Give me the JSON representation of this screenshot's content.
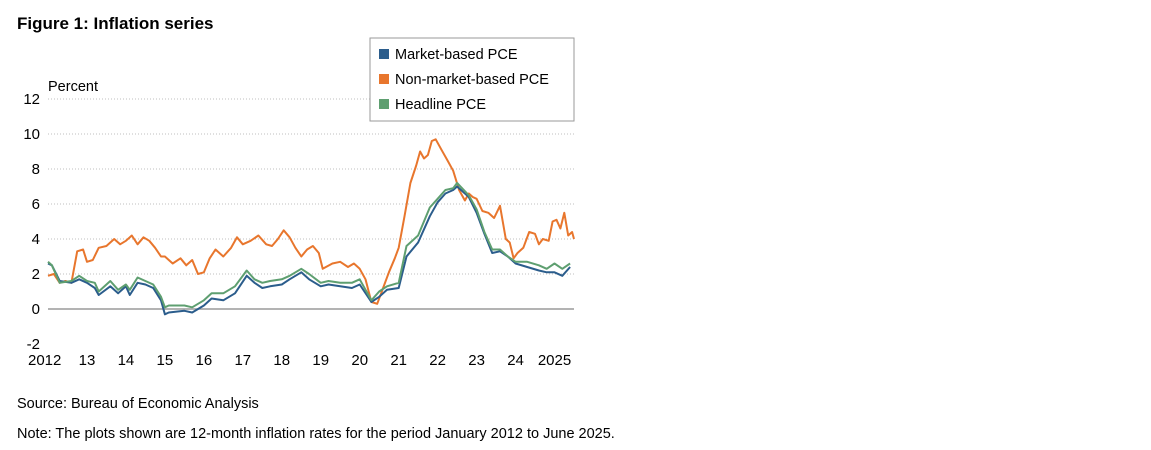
{
  "title": "Figure 1: Inflation series",
  "source": "Source: Bureau of Economic Analysis",
  "note": "Note: The plots shown are 12-month inflation rates for the period January 2012 to June 2025.",
  "colors": {
    "market": "#2b5d8c",
    "nonmarket": "#e8762d",
    "headline": "#5e9f70",
    "grid": "#bfbfbf",
    "zero": "#9a9a9a"
  },
  "chart_data": {
    "type": "line",
    "ylabel": "Percent",
    "ylim": [
      -2,
      12
    ],
    "yticks": [
      -2,
      0,
      2,
      4,
      6,
      8,
      10,
      12
    ],
    "xlim": [
      2012.0,
      2025.5
    ],
    "xticks": [
      {
        "v": 2012,
        "label": "2012"
      },
      {
        "v": 2013,
        "label": "13"
      },
      {
        "v": 2014,
        "label": "14"
      },
      {
        "v": 2015,
        "label": "15"
      },
      {
        "v": 2016,
        "label": "16"
      },
      {
        "v": 2017,
        "label": "17"
      },
      {
        "v": 2018,
        "label": "18"
      },
      {
        "v": 2019,
        "label": "19"
      },
      {
        "v": 2020,
        "label": "20"
      },
      {
        "v": 2021,
        "label": "21"
      },
      {
        "v": 2022,
        "label": "22"
      },
      {
        "v": 2023,
        "label": "23"
      },
      {
        "v": 2024,
        "label": "24"
      },
      {
        "v": 2025,
        "label": "2025"
      }
    ],
    "grid": "horizontal dotted",
    "legend": "top-right",
    "series": [
      {
        "name": "Market-based PCE",
        "color_key": "market",
        "points": [
          [
            2012.0,
            2.6
          ],
          [
            2012.1,
            2.5
          ],
          [
            2012.3,
            1.6
          ],
          [
            2012.6,
            1.5
          ],
          [
            2012.8,
            1.7
          ],
          [
            2013.0,
            1.5
          ],
          [
            2013.2,
            1.2
          ],
          [
            2013.3,
            0.8
          ],
          [
            2013.6,
            1.3
          ],
          [
            2013.8,
            0.9
          ],
          [
            2014.0,
            1.3
          ],
          [
            2014.1,
            0.8
          ],
          [
            2014.3,
            1.5
          ],
          [
            2014.5,
            1.4
          ],
          [
            2014.7,
            1.2
          ],
          [
            2014.9,
            0.5
          ],
          [
            2015.0,
            -0.3
          ],
          [
            2015.1,
            -0.2
          ],
          [
            2015.5,
            -0.1
          ],
          [
            2015.7,
            -0.2
          ],
          [
            2016.0,
            0.2
          ],
          [
            2016.2,
            0.6
          ],
          [
            2016.5,
            0.5
          ],
          [
            2016.8,
            0.9
          ],
          [
            2017.1,
            1.9
          ],
          [
            2017.3,
            1.5
          ],
          [
            2017.5,
            1.2
          ],
          [
            2017.7,
            1.3
          ],
          [
            2018.0,
            1.4
          ],
          [
            2018.2,
            1.7
          ],
          [
            2018.5,
            2.1
          ],
          [
            2018.7,
            1.7
          ],
          [
            2019.0,
            1.3
          ],
          [
            2019.2,
            1.4
          ],
          [
            2019.5,
            1.3
          ],
          [
            2019.8,
            1.2
          ],
          [
            2020.0,
            1.4
          ],
          [
            2020.3,
            0.4
          ],
          [
            2020.5,
            0.7
          ],
          [
            2020.7,
            1.1
          ],
          [
            2021.0,
            1.2
          ],
          [
            2021.2,
            3.0
          ],
          [
            2021.5,
            3.8
          ],
          [
            2021.8,
            5.3
          ],
          [
            2022.0,
            6.1
          ],
          [
            2022.2,
            6.6
          ],
          [
            2022.4,
            6.8
          ],
          [
            2022.5,
            7.0
          ],
          [
            2022.8,
            6.4
          ],
          [
            2023.0,
            5.5
          ],
          [
            2023.2,
            4.3
          ],
          [
            2023.4,
            3.2
          ],
          [
            2023.6,
            3.3
          ],
          [
            2023.8,
            3.0
          ],
          [
            2024.0,
            2.6
          ],
          [
            2024.3,
            2.4
          ],
          [
            2024.6,
            2.2
          ],
          [
            2024.8,
            2.1
          ],
          [
            2025.0,
            2.1
          ],
          [
            2025.2,
            1.9
          ],
          [
            2025.4,
            2.4
          ]
        ]
      },
      {
        "name": "Non-market-based PCE",
        "color_key": "nonmarket",
        "points": [
          [
            2012.0,
            1.9
          ],
          [
            2012.15,
            2.0
          ],
          [
            2012.3,
            1.5
          ],
          [
            2012.45,
            1.6
          ],
          [
            2012.6,
            1.5
          ],
          [
            2012.75,
            3.3
          ],
          [
            2012.9,
            3.4
          ],
          [
            2013.0,
            2.7
          ],
          [
            2013.15,
            2.8
          ],
          [
            2013.3,
            3.5
          ],
          [
            2013.5,
            3.6
          ],
          [
            2013.7,
            4.0
          ],
          [
            2013.85,
            3.7
          ],
          [
            2014.0,
            3.9
          ],
          [
            2014.15,
            4.2
          ],
          [
            2014.3,
            3.7
          ],
          [
            2014.45,
            4.1
          ],
          [
            2014.6,
            3.9
          ],
          [
            2014.75,
            3.5
          ],
          [
            2014.9,
            3.0
          ],
          [
            2015.0,
            3.0
          ],
          [
            2015.2,
            2.6
          ],
          [
            2015.4,
            2.9
          ],
          [
            2015.55,
            2.5
          ],
          [
            2015.7,
            2.8
          ],
          [
            2015.85,
            2.0
          ],
          [
            2016.0,
            2.1
          ],
          [
            2016.15,
            2.9
          ],
          [
            2016.3,
            3.4
          ],
          [
            2016.5,
            3.0
          ],
          [
            2016.7,
            3.5
          ],
          [
            2016.85,
            4.1
          ],
          [
            2017.0,
            3.7
          ],
          [
            2017.2,
            3.9
          ],
          [
            2017.4,
            4.2
          ],
          [
            2017.6,
            3.7
          ],
          [
            2017.75,
            3.6
          ],
          [
            2017.9,
            4.0
          ],
          [
            2018.05,
            4.5
          ],
          [
            2018.2,
            4.1
          ],
          [
            2018.35,
            3.5
          ],
          [
            2018.5,
            3.0
          ],
          [
            2018.65,
            3.4
          ],
          [
            2018.8,
            3.6
          ],
          [
            2018.95,
            3.2
          ],
          [
            2019.05,
            2.3
          ],
          [
            2019.3,
            2.6
          ],
          [
            2019.5,
            2.7
          ],
          [
            2019.7,
            2.4
          ],
          [
            2019.85,
            2.6
          ],
          [
            2020.0,
            2.3
          ],
          [
            2020.15,
            1.7
          ],
          [
            2020.3,
            0.4
          ],
          [
            2020.45,
            0.3
          ],
          [
            2020.6,
            1.2
          ],
          [
            2020.75,
            2.1
          ],
          [
            2020.9,
            2.9
          ],
          [
            2021.0,
            3.5
          ],
          [
            2021.15,
            5.3
          ],
          [
            2021.3,
            7.2
          ],
          [
            2021.45,
            8.2
          ],
          [
            2021.55,
            9.0
          ],
          [
            2021.65,
            8.6
          ],
          [
            2021.75,
            8.8
          ],
          [
            2021.85,
            9.6
          ],
          [
            2021.95,
            9.7
          ],
          [
            2022.1,
            9.1
          ],
          [
            2022.25,
            8.5
          ],
          [
            2022.4,
            7.9
          ],
          [
            2022.55,
            6.8
          ],
          [
            2022.7,
            6.2
          ],
          [
            2022.8,
            6.6
          ],
          [
            2022.9,
            6.4
          ],
          [
            2023.0,
            6.3
          ],
          [
            2023.15,
            5.6
          ],
          [
            2023.3,
            5.5
          ],
          [
            2023.45,
            5.2
          ],
          [
            2023.6,
            5.9
          ],
          [
            2023.75,
            4.0
          ],
          [
            2023.85,
            3.8
          ],
          [
            2023.95,
            2.9
          ],
          [
            2024.05,
            3.2
          ],
          [
            2024.2,
            3.5
          ],
          [
            2024.35,
            4.4
          ],
          [
            2024.5,
            4.3
          ],
          [
            2024.6,
            3.7
          ],
          [
            2024.7,
            4.0
          ],
          [
            2024.85,
            3.9
          ],
          [
            2024.95,
            5.0
          ],
          [
            2025.05,
            5.1
          ],
          [
            2025.15,
            4.6
          ],
          [
            2025.25,
            5.5
          ],
          [
            2025.35,
            4.2
          ],
          [
            2025.45,
            4.4
          ],
          [
            2025.5,
            4.0
          ]
        ]
      },
      {
        "name": "Headline PCE",
        "color_key": "headline",
        "points": [
          [
            2012.0,
            2.7
          ],
          [
            2012.1,
            2.5
          ],
          [
            2012.3,
            1.5
          ],
          [
            2012.6,
            1.6
          ],
          [
            2012.8,
            1.9
          ],
          [
            2013.0,
            1.6
          ],
          [
            2013.2,
            1.5
          ],
          [
            2013.3,
            1.0
          ],
          [
            2013.6,
            1.6
          ],
          [
            2013.8,
            1.1
          ],
          [
            2014.0,
            1.4
          ],
          [
            2014.1,
            1.1
          ],
          [
            2014.3,
            1.8
          ],
          [
            2014.5,
            1.6
          ],
          [
            2014.7,
            1.4
          ],
          [
            2014.9,
            0.7
          ],
          [
            2015.0,
            0.1
          ],
          [
            2015.1,
            0.2
          ],
          [
            2015.5,
            0.2
          ],
          [
            2015.7,
            0.1
          ],
          [
            2016.0,
            0.5
          ],
          [
            2016.2,
            0.9
          ],
          [
            2016.5,
            0.9
          ],
          [
            2016.8,
            1.3
          ],
          [
            2017.1,
            2.2
          ],
          [
            2017.3,
            1.7
          ],
          [
            2017.5,
            1.5
          ],
          [
            2017.7,
            1.6
          ],
          [
            2018.0,
            1.7
          ],
          [
            2018.2,
            1.9
          ],
          [
            2018.5,
            2.3
          ],
          [
            2018.7,
            2.0
          ],
          [
            2019.0,
            1.5
          ],
          [
            2019.2,
            1.6
          ],
          [
            2019.5,
            1.5
          ],
          [
            2019.8,
            1.5
          ],
          [
            2020.0,
            1.7
          ],
          [
            2020.3,
            0.5
          ],
          [
            2020.5,
            1.0
          ],
          [
            2020.7,
            1.3
          ],
          [
            2021.0,
            1.5
          ],
          [
            2021.2,
            3.6
          ],
          [
            2021.5,
            4.2
          ],
          [
            2021.8,
            5.8
          ],
          [
            2022.0,
            6.3
          ],
          [
            2022.2,
            6.8
          ],
          [
            2022.4,
            6.9
          ],
          [
            2022.5,
            7.2
          ],
          [
            2022.8,
            6.5
          ],
          [
            2023.0,
            5.7
          ],
          [
            2023.2,
            4.4
          ],
          [
            2023.4,
            3.4
          ],
          [
            2023.6,
            3.4
          ],
          [
            2023.8,
            3.0
          ],
          [
            2024.0,
            2.7
          ],
          [
            2024.3,
            2.7
          ],
          [
            2024.6,
            2.5
          ],
          [
            2024.8,
            2.3
          ],
          [
            2025.0,
            2.6
          ],
          [
            2025.2,
            2.3
          ],
          [
            2025.4,
            2.6
          ]
        ]
      }
    ]
  }
}
